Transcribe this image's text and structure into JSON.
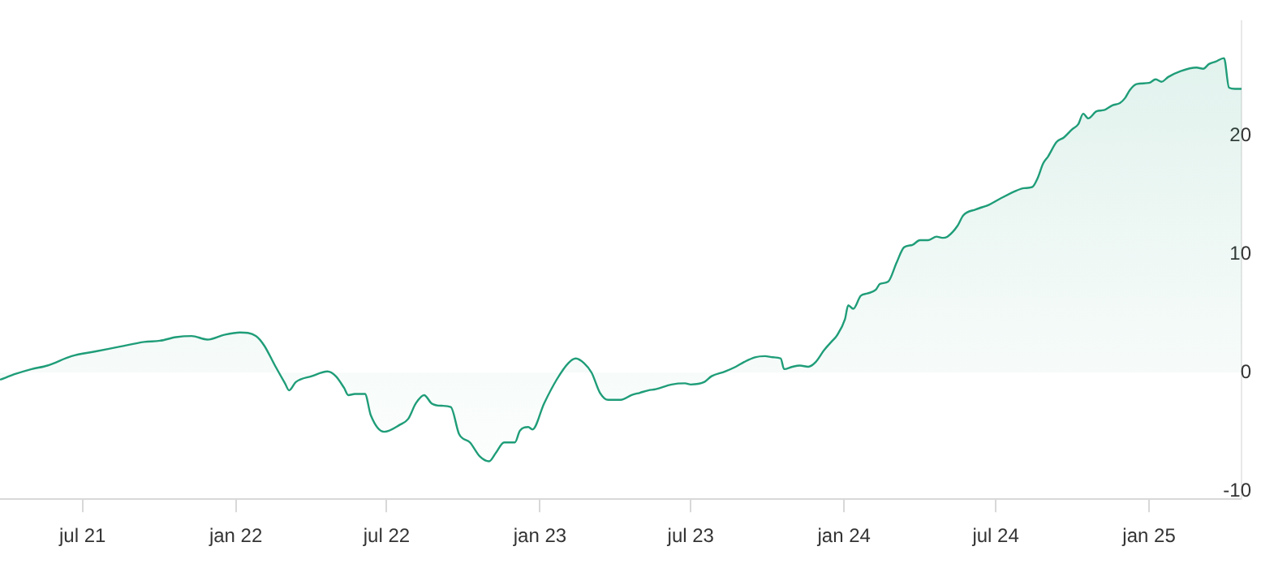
{
  "chart_data": {
    "type": "area",
    "x": [
      "2021-03-24",
      "2021-04-12",
      "2021-05-01",
      "2021-05-20",
      "2021-06-18",
      "2021-07-17",
      "2021-08-15",
      "2021-09-13",
      "2021-10-02",
      "2021-10-21",
      "2021-11-09",
      "2021-11-28",
      "2021-12-18",
      "2022-01-06",
      "2022-01-25",
      "2022-02-04",
      "2022-02-17",
      "2022-03-01",
      "2022-03-06",
      "2022-03-14",
      "2022-04-02",
      "2022-04-21",
      "2022-05-01",
      "2022-05-11",
      "2022-05-16",
      "2022-05-24",
      "2022-06-05",
      "2022-06-12",
      "2022-06-28",
      "2022-07-17",
      "2022-07-27",
      "2022-08-05",
      "2022-08-15",
      "2022-08-24",
      "2022-09-05",
      "2022-09-16",
      "2022-09-26",
      "2022-10-09",
      "2022-10-21",
      "2022-11-01",
      "2022-11-09",
      "2022-11-19",
      "2022-12-02",
      "2022-12-08",
      "2022-12-18",
      "2022-12-23",
      "2023-01-06",
      "2023-01-21",
      "2023-02-04",
      "2023-02-13",
      "2023-02-23",
      "2023-03-04",
      "2023-03-14",
      "2023-03-24",
      "2023-04-08",
      "2023-04-21",
      "2023-05-01",
      "2023-05-11",
      "2023-05-20",
      "2023-06-08",
      "2023-06-24",
      "2023-07-01",
      "2023-07-17",
      "2023-07-26",
      "2023-08-11",
      "2023-08-24",
      "2023-09-03",
      "2023-09-16",
      "2023-09-28",
      "2023-10-08",
      "2023-10-17",
      "2023-10-21",
      "2023-10-31",
      "2023-11-09",
      "2023-11-19",
      "2023-11-28",
      "2023-12-08",
      "2023-12-18",
      "2023-12-23",
      "2024-01-02",
      "2024-01-06",
      "2024-01-12",
      "2024-01-21",
      "2024-01-29",
      "2024-02-08",
      "2024-02-13",
      "2024-02-23",
      "2024-03-04",
      "2024-03-13",
      "2024-03-23",
      "2024-04-01",
      "2024-04-11",
      "2024-04-21",
      "2024-04-28",
      "2024-05-04",
      "2024-05-16",
      "2024-05-23",
      "2024-06-07",
      "2024-06-23",
      "2024-07-06",
      "2024-07-26",
      "2024-08-04",
      "2024-08-14",
      "2024-08-20",
      "2024-08-27",
      "2024-09-02",
      "2024-09-12",
      "2024-09-21",
      "2024-10-01",
      "2024-10-08",
      "2024-10-14",
      "2024-10-20",
      "2024-10-30",
      "2024-11-08",
      "2024-11-18",
      "2024-11-27",
      "2024-12-03",
      "2024-12-09",
      "2024-12-17",
      "2025-01-01",
      "2025-01-09",
      "2025-01-16",
      "2025-01-24",
      "2025-02-08",
      "2025-02-27",
      "2025-03-07",
      "2025-03-14",
      "2025-03-22",
      "2025-04-01",
      "2025-04-07",
      "2025-04-14",
      "2025-04-22"
    ],
    "series": [
      {
        "color": "#1f9d78",
        "values": [
          -0.6,
          -0.1,
          0.3,
          0.6,
          1.4,
          1.8,
          2.2,
          2.6,
          2.7,
          3.0,
          3.1,
          2.8,
          3.2,
          3.4,
          3.1,
          2.3,
          0.6,
          -0.9,
          -1.5,
          -0.8,
          -0.3,
          0.1,
          -0.3,
          -1.3,
          -1.9,
          -1.8,
          -1.8,
          -3.6,
          -5.0,
          -4.4,
          -3.9,
          -2.6,
          -1.9,
          -2.6,
          -2.8,
          -2.9,
          -5.2,
          -5.9,
          -7.1,
          -7.5,
          -6.8,
          -5.9,
          -5.9,
          -4.9,
          -4.6,
          -4.8,
          -2.6,
          -0.6,
          0.8,
          1.2,
          0.8,
          0,
          -1.7,
          -2.3,
          -2.3,
          -1.9,
          -1.7,
          -1.5,
          -1.4,
          -1.0,
          -0.9,
          -1.0,
          -0.8,
          -0.3,
          0.1,
          0.5,
          0.9,
          1.3,
          1.4,
          1.3,
          1.2,
          0.3,
          0.5,
          0.6,
          0.5,
          0.9,
          1.9,
          2.7,
          3.1,
          4.5,
          5.7,
          5.4,
          6.5,
          6.7,
          7.0,
          7.5,
          7.7,
          9.3,
          10.6,
          10.8,
          11.2,
          11.2,
          11.5,
          11.4,
          11.5,
          12.4,
          13.3,
          13.8,
          14.2,
          14.7,
          15.4,
          15.6,
          15.7,
          16.4,
          17.7,
          18.3,
          19.5,
          19.9,
          20.6,
          21.0,
          21.9,
          21.5,
          22.1,
          22.2,
          22.6,
          22.8,
          23.2,
          23.9,
          24.4,
          24.5,
          24.8,
          24.6,
          25.0,
          25.5,
          25.8,
          25.7,
          26.1,
          26.3,
          26.6,
          24.1,
          24.0,
          24.0
        ]
      }
    ],
    "xlim": [
      "2021-03-24",
      "2025-04-22"
    ],
    "xticks": [
      {
        "value": "2021-07-01",
        "label": "jul 21"
      },
      {
        "value": "2022-01-01",
        "label": "jan 22"
      },
      {
        "value": "2022-07-01",
        "label": "jul 22"
      },
      {
        "value": "2023-01-01",
        "label": "jan 23"
      },
      {
        "value": "2023-07-01",
        "label": "jul 23"
      },
      {
        "value": "2024-01-01",
        "label": "jan 24"
      },
      {
        "value": "2024-07-01",
        "label": "jul 24"
      },
      {
        "value": "2025-01-01",
        "label": "jan 25"
      }
    ],
    "ylim": [
      -10.7,
      29.7
    ],
    "yticks": [
      -10,
      0,
      10,
      20
    ],
    "grid": false,
    "legend": false,
    "marker": "none",
    "line_style": "solid"
  }
}
